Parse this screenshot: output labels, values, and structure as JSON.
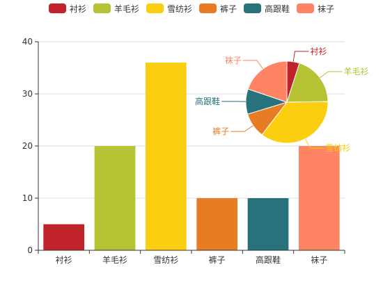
{
  "chart_data": [
    {
      "type": "bar",
      "categories": [
        "衬衫",
        "羊毛衫",
        "雪纺衫",
        "裤子",
        "高跟鞋",
        "袜子"
      ],
      "values": [
        5,
        20,
        36,
        10,
        10,
        20
      ],
      "ylim": [
        0,
        40
      ],
      "yticks": [
        0,
        10,
        20,
        30,
        40
      ],
      "grid": true
    },
    {
      "type": "pie",
      "labels": [
        "衬衫",
        "羊毛衫",
        "雪纺衫",
        "裤子",
        "高跟鞋",
        "袜子"
      ],
      "values": [
        5,
        20,
        36,
        10,
        10,
        20
      ]
    }
  ],
  "legend": {
    "position": "top",
    "items": [
      "衬衫",
      "羊毛衫",
      "雪纺衫",
      "裤子",
      "高跟鞋",
      "袜子"
    ]
  },
  "colors": [
    "#c1232b",
    "#b5c334",
    "#fcce10",
    "#e87c25",
    "#27727b",
    "#fe8463"
  ]
}
